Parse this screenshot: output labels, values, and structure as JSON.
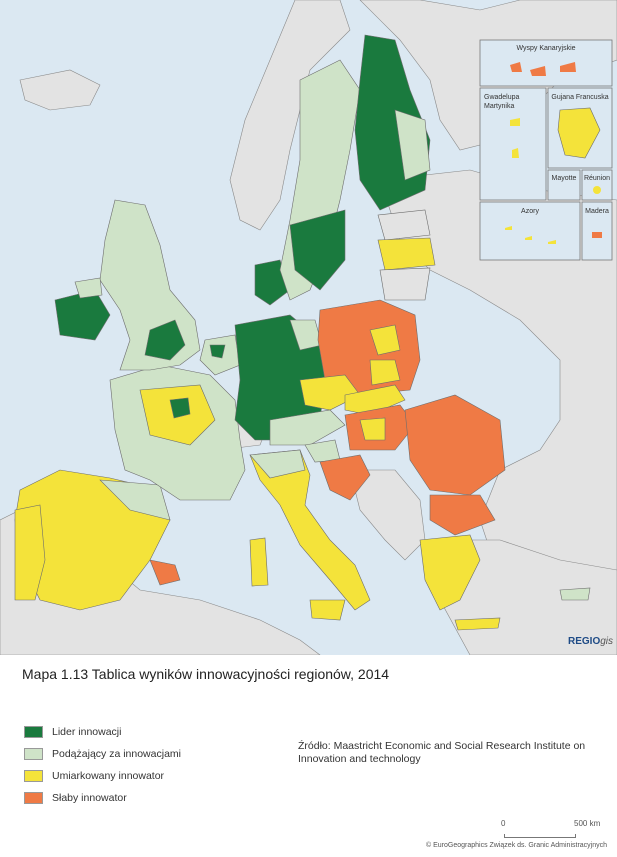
{
  "colors": {
    "sea": "#dbe8f2",
    "non_eu_land": "#e3e3e3",
    "no_data": "#bdbdbd",
    "leader": "#1a7a3e",
    "follower": "#cfe3c8",
    "moderate": "#f4e33a",
    "modest": "#ef7a45",
    "border": "#6d6d6d"
  },
  "insets": {
    "canarias": "Wyspy Kanaryjskie",
    "guadeloupe_martinique": "Gwadelupa\nMartynika",
    "guyane": "Gujana Francuska",
    "mayotte": "Mayotte",
    "reunion": "Réunion",
    "azores": "Azory",
    "madeira": "Madera"
  },
  "map_title": "Mapa 1.13 Tablica wyników innowacyjności regionów, 2014",
  "legend": [
    {
      "label": "Lider innowacji",
      "color": "#1a7a3e"
    },
    {
      "label": "Podążający za innowacjami",
      "color": "#cfe3c8"
    },
    {
      "label": "Umiarkowany innowator",
      "color": "#f4e33a"
    },
    {
      "label": "Słaby innowator",
      "color": "#ef7a45"
    }
  ],
  "source": "Źródło: Maastricht Economic and Social Research Institute on Innovation and technology",
  "scale": {
    "zero": "0",
    "max": "500 km"
  },
  "copyright": "© EuroGeographics Związek ds. Granic Administracyjnych",
  "brand": {
    "main": "REGIO",
    "sub": "gis"
  }
}
